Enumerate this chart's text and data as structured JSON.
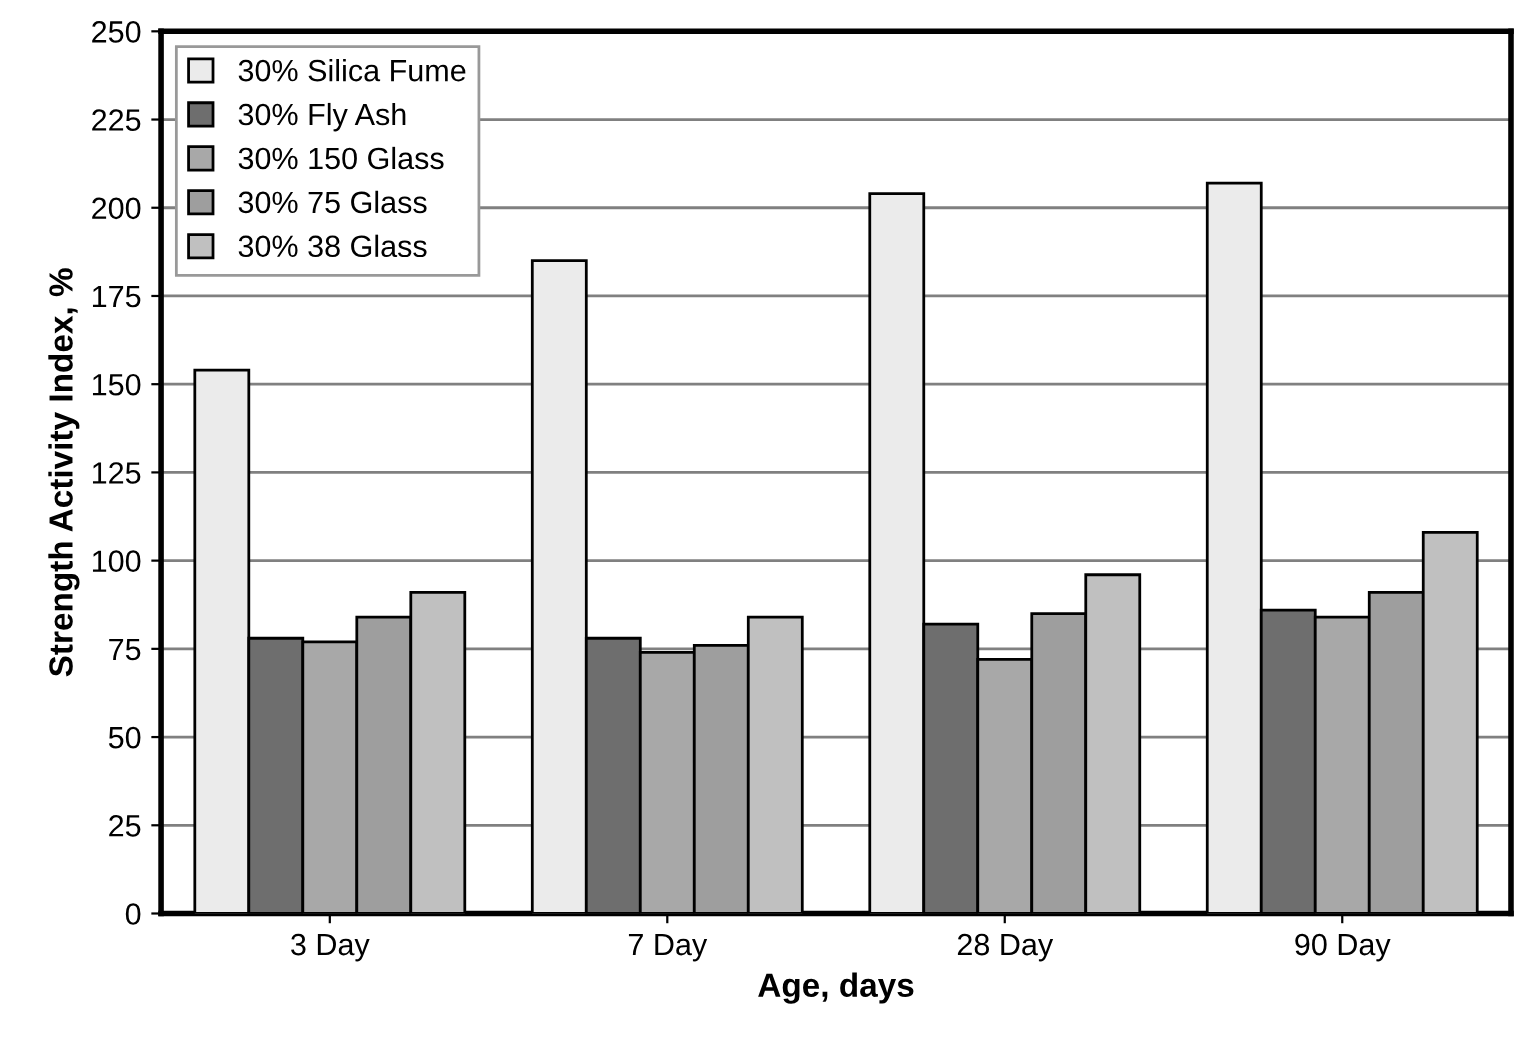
{
  "chart_data": {
    "type": "bar",
    "xlabel": "Age, days",
    "ylabel": "Strength Activity Index, %",
    "categories": [
      "3 Day",
      "7 Day",
      "28 Day",
      "90 Day"
    ],
    "series": [
      {
        "name": "30% Silica Fume",
        "color": "#ebebeb",
        "values": [
          154,
          185,
          204,
          207
        ]
      },
      {
        "name": "30% Fly Ash",
        "color": "#6e6e6e",
        "values": [
          78,
          78,
          82,
          86
        ]
      },
      {
        "name": "30% 150 Glass",
        "color": "#a8a8a8",
        "values": [
          77,
          74,
          72,
          84
        ]
      },
      {
        "name": "30% 75 Glass",
        "color": "#9e9e9e",
        "values": [
          84,
          76,
          85,
          91
        ]
      },
      {
        "name": "30% 38 Glass",
        "color": "#c0c0c0",
        "values": [
          91,
          84,
          96,
          108
        ]
      }
    ],
    "ylim": [
      0,
      250
    ],
    "yticks": [
      0,
      25,
      50,
      75,
      100,
      125,
      150,
      175,
      200,
      225,
      250
    ],
    "grid": "y",
    "legend": "top left"
  }
}
